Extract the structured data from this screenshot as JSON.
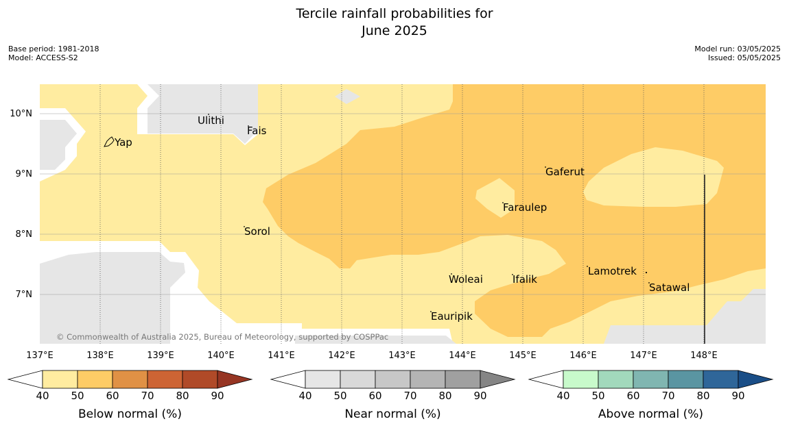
{
  "title": {
    "line1": "Tercile rainfall probabilities for",
    "line2": "June 2025"
  },
  "meta": {
    "base_period": "Base period: 1981-2018",
    "model": "Model: ACCESS-S2",
    "model_run": "Model run: 03/05/2025",
    "issued": "Issued: 05/05/2025"
  },
  "map": {
    "lat_labels": [
      "10°N",
      "9°N",
      "8°N",
      "7°N"
    ],
    "lon_labels": [
      "137°E",
      "138°E",
      "139°E",
      "140°E",
      "141°E",
      "142°E",
      "143°E",
      "144°E",
      "145°E",
      "146°E",
      "147°E",
      "148°E"
    ],
    "places": [
      "Ulithi",
      "Fais",
      "Yap",
      "Gaferut",
      "Faraulep",
      "Sorol",
      "Lamotrek",
      "Woleai",
      "Ifalik",
      "Satawal",
      "Eauripik"
    ],
    "copyright": "© Commonwealth of Australia 2025, Bureau of Meteorology, supported by COSPPac",
    "colors": {
      "no_data_land": "#e6e6e6",
      "below_40_50": "#ffeca0",
      "below_50_60": "#fecc66"
    }
  },
  "colorbars": [
    {
      "name": "Below normal (%)",
      "ticks": [
        "40",
        "50",
        "60",
        "70",
        "80",
        "90"
      ],
      "colors": [
        "#ffeca0",
        "#fecc66",
        "#e09145",
        "#cd6434",
        "#b04a28",
        "#963523"
      ]
    },
    {
      "name": "Near normal (%)",
      "ticks": [
        "40",
        "50",
        "60",
        "70",
        "80",
        "90"
      ],
      "colors": [
        "#e6e6e6",
        "#d9d9d9",
        "#c7c7c7",
        "#b4b4b4",
        "#a0a0a0",
        "#858585"
      ]
    },
    {
      "name": "Above normal (%)",
      "ticks": [
        "40",
        "50",
        "60",
        "70",
        "80",
        "90"
      ],
      "colors": [
        "#c8facb",
        "#a2d9bc",
        "#80b6b1",
        "#5a95a2",
        "#2f6699",
        "#1a4e87"
      ]
    }
  ]
}
